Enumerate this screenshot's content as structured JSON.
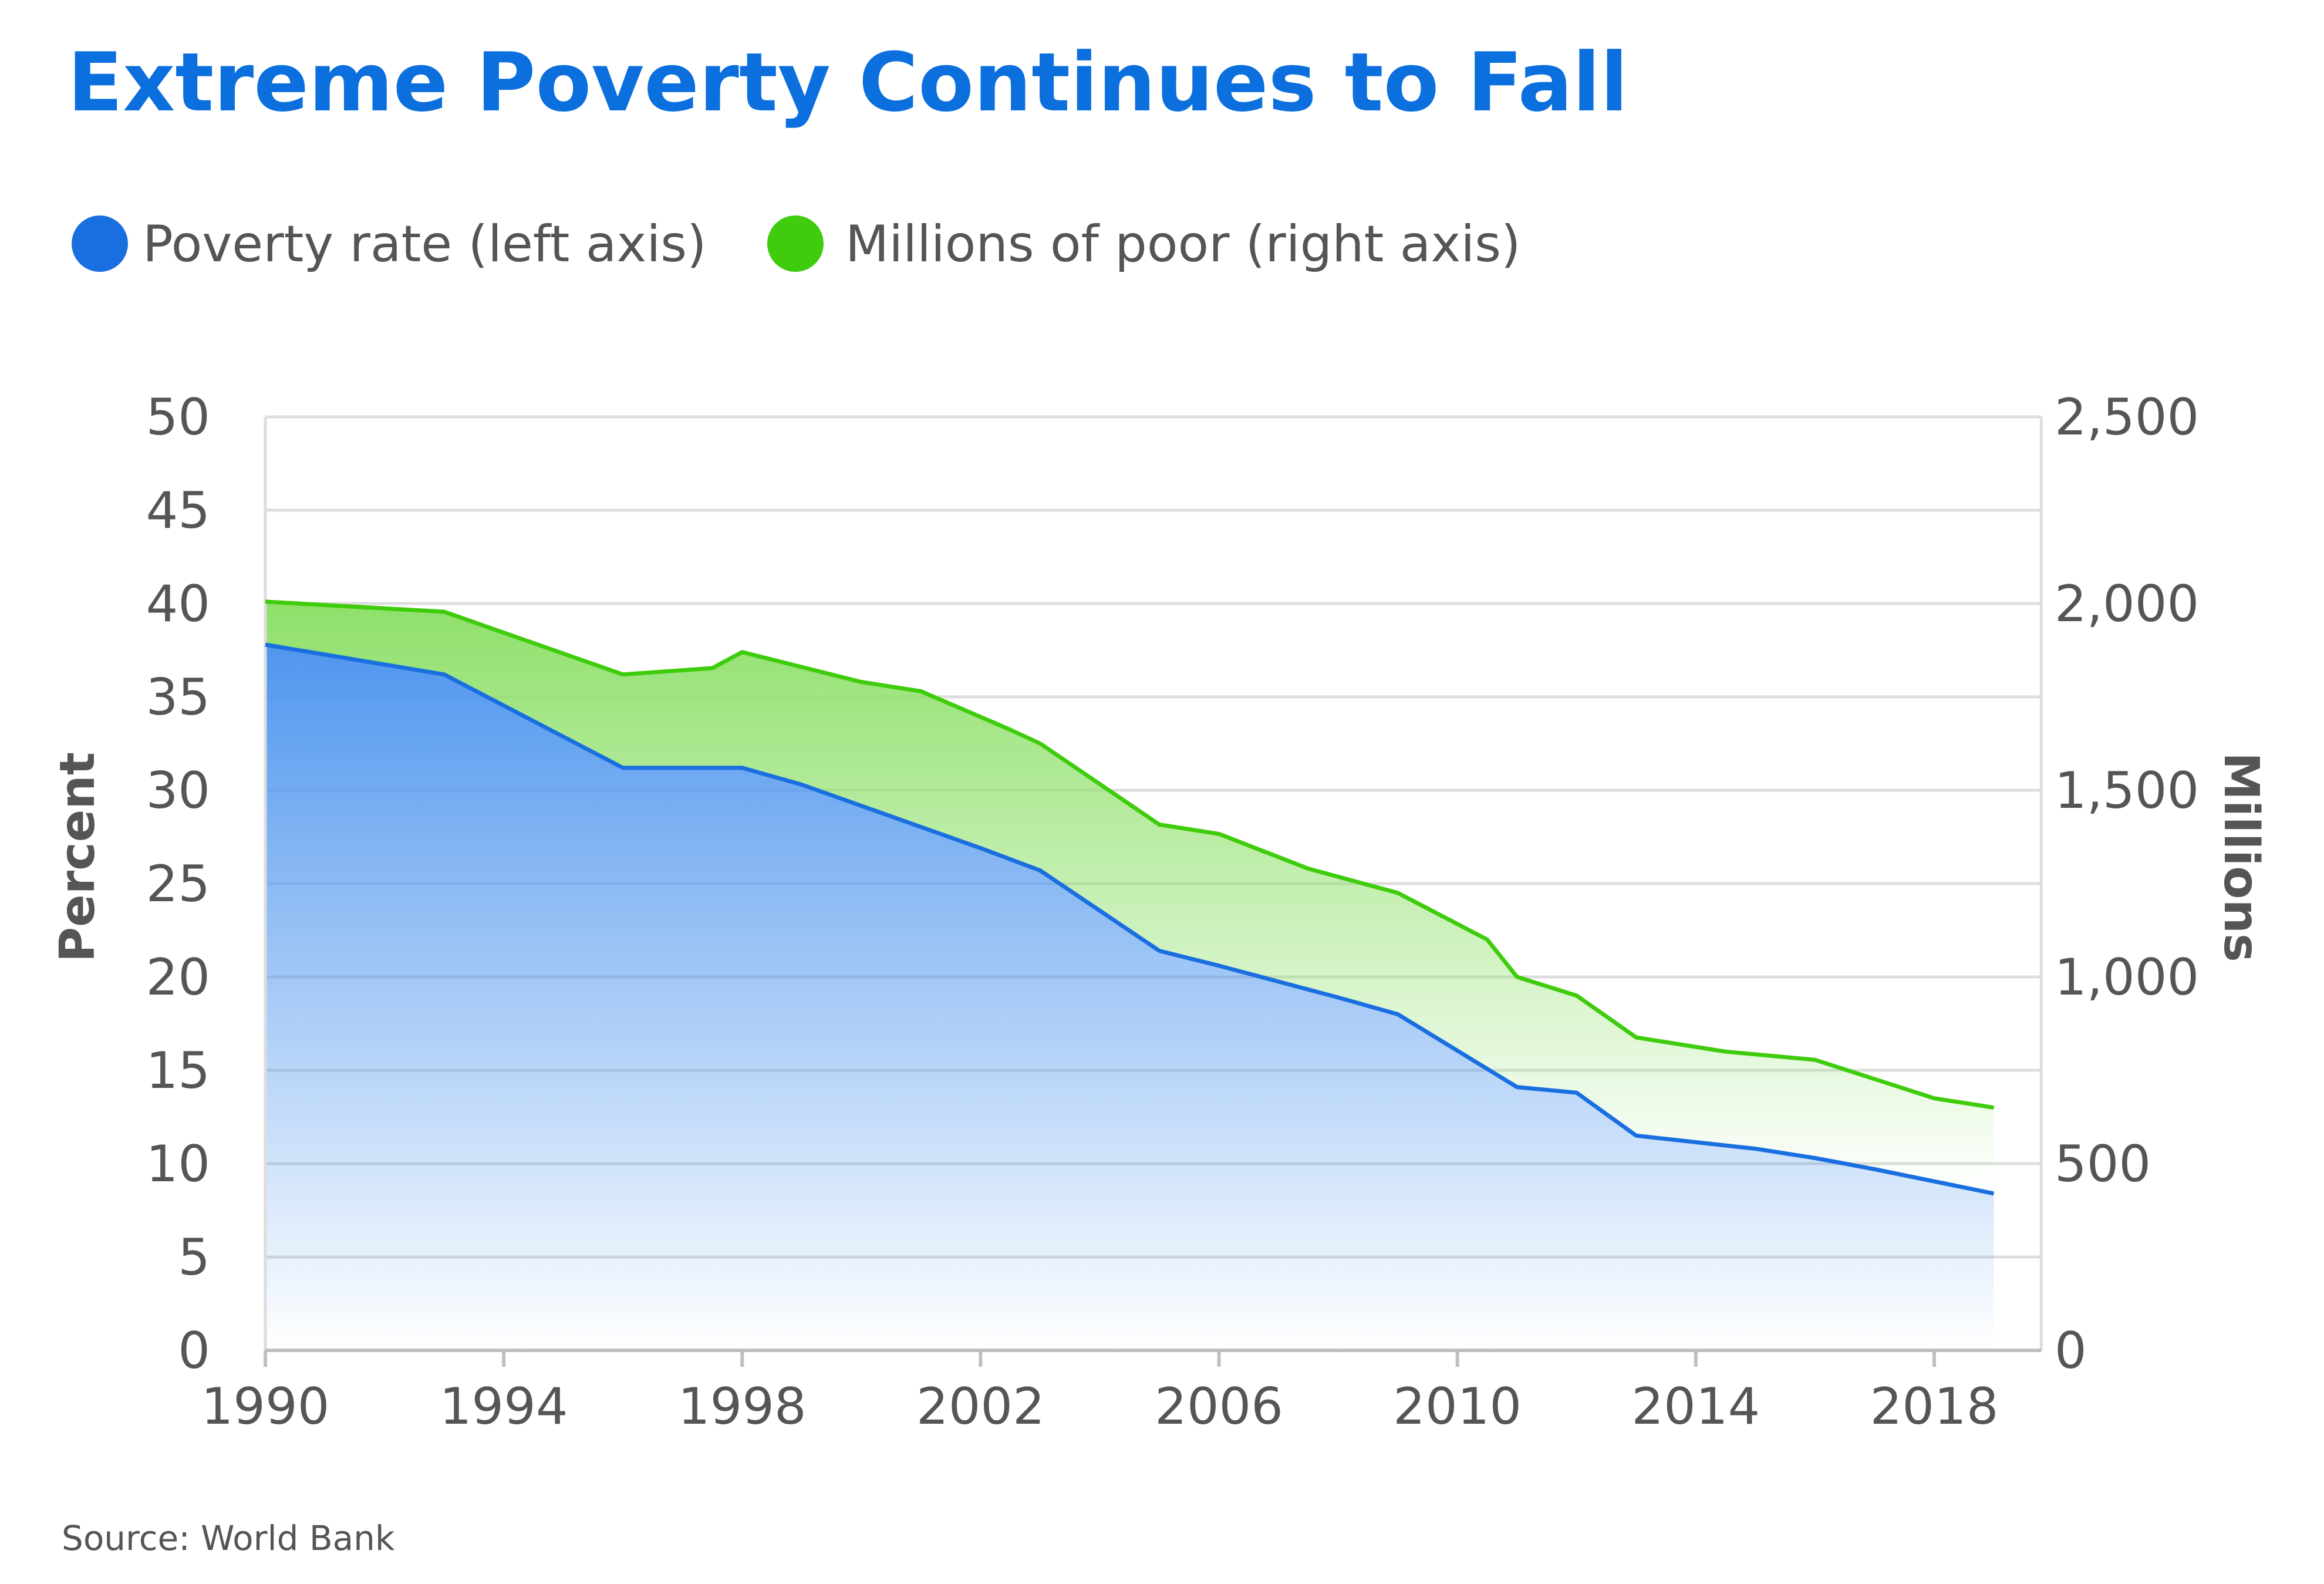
{
  "colors": {
    "title": "#0b6fde",
    "primary_line": "#1a6fe0",
    "secondary_line": "#3fcc0c",
    "primary_fill": "#4f96ee",
    "secondary_fill": "#8ee06a",
    "text": "#555555",
    "grid": "#dddddd"
  },
  "chart_data": {
    "type": "area",
    "title": "Extreme Poverty Continues to Fall",
    "source": "Source: World Bank",
    "legend": [
      {
        "label": "Poverty rate (left axis)",
        "color": "#1a6fe0"
      },
      {
        "label": "Millions of poor (right axis)",
        "color": "#3fcc0c"
      }
    ],
    "legend_position": "top-left",
    "grid": true,
    "x": {
      "label": "",
      "range": [
        1990,
        2019.5
      ],
      "ticks": [
        1990,
        1994,
        1998,
        2002,
        2006,
        2010,
        2014,
        2018
      ]
    },
    "y_left": {
      "label": "Percent",
      "range": [
        0,
        50
      ],
      "ticks": [
        0,
        5,
        10,
        15,
        20,
        25,
        30,
        35,
        40,
        45,
        50
      ],
      "tick_labels": [
        "0",
        "5",
        "10",
        "15",
        "20",
        "25",
        "30",
        "35",
        "40",
        "45",
        "50"
      ]
    },
    "y_right": {
      "label": "Millions",
      "range": [
        0,
        2500
      ],
      "ticks": [
        0,
        500,
        1000,
        1500,
        2000,
        2500
      ],
      "tick_labels": [
        "0",
        "500",
        "1,000",
        "1,500",
        "2,000",
        "2,500"
      ]
    },
    "series": [
      {
        "name": "Poverty rate (left axis)",
        "axis": "left",
        "unit": "Percent",
        "points": [
          [
            1990,
            37.8
          ],
          [
            1993,
            36.2
          ],
          [
            1996,
            31.2
          ],
          [
            1998,
            31.2
          ],
          [
            1999,
            30.3
          ],
          [
            2002,
            26.9
          ],
          [
            2003,
            25.7
          ],
          [
            2005,
            21.4
          ],
          [
            2006,
            20.6
          ],
          [
            2008,
            18.9
          ],
          [
            2009,
            18.0
          ],
          [
            2011,
            14.1
          ],
          [
            2012,
            13.8
          ],
          [
            2013,
            11.5
          ],
          [
            2015,
            10.8
          ],
          [
            2016,
            10.3
          ],
          [
            2017,
            9.7
          ],
          [
            2019,
            8.4
          ]
        ]
      },
      {
        "name": "Millions of poor (right axis)",
        "axis": "right",
        "unit": "Millions",
        "points": [
          [
            1990,
            2005
          ],
          [
            1993,
            1978
          ],
          [
            1996,
            1810
          ],
          [
            1997.5,
            1827
          ],
          [
            1998,
            1870
          ],
          [
            2000,
            1790
          ],
          [
            2001,
            1765
          ],
          [
            2002.5,
            1662
          ],
          [
            2003,
            1625
          ],
          [
            2005,
            1408
          ],
          [
            2006,
            1383
          ],
          [
            2007.5,
            1290
          ],
          [
            2009,
            1225
          ],
          [
            2010.5,
            1100
          ],
          [
            2011,
            1000
          ],
          [
            2012,
            950
          ],
          [
            2013,
            838
          ],
          [
            2014.5,
            800
          ],
          [
            2016,
            778
          ],
          [
            2018,
            675
          ],
          [
            2019,
            650
          ]
        ]
      }
    ]
  }
}
